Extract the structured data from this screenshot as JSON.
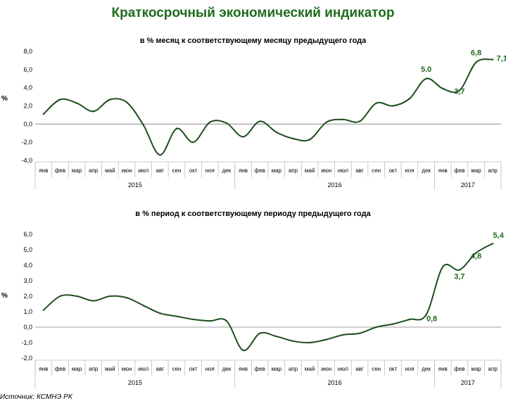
{
  "title": "Краткосрочный экономический индикатор",
  "source": "Источник: КСМНЭ РК",
  "colors": {
    "title": "#1e6b1e",
    "line": "#1e4d1e",
    "label": "#1e6b1e"
  },
  "chart_data": [
    {
      "type": "line",
      "title": "в % месяц к соответствующему месяцу предыдущего года",
      "ylabel": "%",
      "ylim": [
        -4.0,
        8.0
      ],
      "yticks": [
        "8,0",
        "6,0",
        "4,0",
        "2,0",
        "0,0",
        "-2,0",
        "-4,0"
      ],
      "categories": [
        "янв",
        "фев",
        "мар",
        "апр",
        "май",
        "июн",
        "июл",
        "авг",
        "сен",
        "окт",
        "ноя",
        "дек",
        "янв",
        "фев",
        "мар",
        "апр",
        "май",
        "июн",
        "июл",
        "авг",
        "сен",
        "окт",
        "ноя",
        "дек",
        "янв",
        "фев",
        "мар",
        "апр"
      ],
      "years": [
        {
          "label": "2015",
          "start": 0,
          "end": 11
        },
        {
          "label": "2016",
          "start": 12,
          "end": 23
        },
        {
          "label": "2017",
          "start": 24,
          "end": 27
        }
      ],
      "values": [
        1.1,
        2.7,
        2.3,
        1.4,
        2.7,
        2.4,
        -0.1,
        -3.4,
        -0.5,
        -2.0,
        0.2,
        0.1,
        -1.4,
        0.3,
        -0.9,
        -1.6,
        -1.7,
        0.2,
        0.5,
        0.3,
        2.3,
        2.0,
        2.8,
        5.0,
        3.9,
        3.7,
        6.8,
        7.1
      ],
      "annotations": [
        {
          "index": 23,
          "text": "5.0"
        },
        {
          "index": 25,
          "text": "3,7"
        },
        {
          "index": 26,
          "text": "6,8"
        },
        {
          "index": 27,
          "text": "7,1"
        }
      ]
    },
    {
      "type": "line",
      "title": "в % период к соответствующему периоду предыдущего года",
      "ylabel": "%",
      "ylim": [
        -2.0,
        6.0
      ],
      "yticks": [
        "6,0",
        "5,0",
        "4,0",
        "3,0",
        "2,0",
        "1,0",
        "0,0",
        "-1,0",
        "-2,0"
      ],
      "categories": [
        "янв",
        "фев",
        "мар",
        "апр",
        "май",
        "июн",
        "июл",
        "авг",
        "сен",
        "окт",
        "ноя",
        "дек",
        "янв",
        "фев",
        "мар",
        "апр",
        "май",
        "июн",
        "июл",
        "авг",
        "сен",
        "окт",
        "ноя",
        "дек",
        "янв",
        "фев",
        "мар",
        "апр"
      ],
      "years": [
        {
          "label": "2015",
          "start": 0,
          "end": 11
        },
        {
          "label": "2016",
          "start": 12,
          "end": 23
        },
        {
          "label": "2017",
          "start": 24,
          "end": 27
        }
      ],
      "values": [
        1.1,
        2.0,
        2.0,
        1.7,
        2.0,
        1.9,
        1.4,
        0.9,
        0.7,
        0.5,
        0.4,
        0.4,
        -1.5,
        -0.4,
        -0.6,
        -0.9,
        -1.0,
        -0.8,
        -0.5,
        -0.4,
        0.0,
        0.2,
        0.5,
        0.8,
        3.9,
        3.7,
        4.8,
        5.4
      ],
      "annotations": [
        {
          "index": 23,
          "text": "0,8"
        },
        {
          "index": 25,
          "text": "3,7"
        },
        {
          "index": 26,
          "text": "4,8"
        },
        {
          "index": 27,
          "text": "5,4"
        }
      ]
    }
  ]
}
